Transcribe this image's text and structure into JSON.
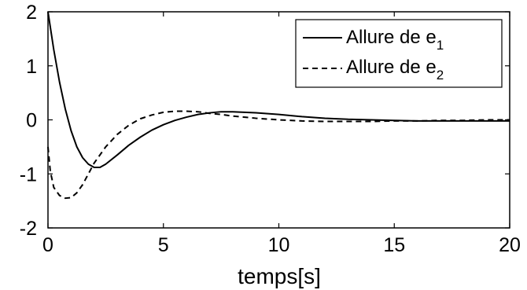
{
  "chart_data": {
    "type": "line",
    "title": "",
    "xlabel": "temps[s]",
    "ylabel": "",
    "xlim": [
      0,
      20
    ],
    "ylim": [
      -2,
      2
    ],
    "xticks": [
      0,
      5,
      10,
      15,
      20
    ],
    "yticks": [
      -2,
      -1,
      0,
      1,
      2
    ],
    "grid": false,
    "legend_position": "top-right",
    "series": [
      {
        "name": "Allure de e",
        "name_subscript": "1",
        "line_style": "solid",
        "color": "#000000",
        "x": [
          0,
          0.25,
          0.5,
          0.75,
          1,
          1.25,
          1.5,
          1.75,
          2,
          2.25,
          2.5,
          3,
          3.5,
          4,
          4.5,
          5,
          5.5,
          6,
          6.5,
          7,
          7.5,
          8,
          9,
          10,
          11,
          12,
          13,
          14,
          15,
          16,
          17,
          18,
          19,
          20
        ],
        "y": [
          2.0,
          1.3,
          0.7,
          0.2,
          -0.2,
          -0.5,
          -0.7,
          -0.82,
          -0.88,
          -0.88,
          -0.82,
          -0.65,
          -0.47,
          -0.32,
          -0.19,
          -0.09,
          -0.01,
          0.05,
          0.1,
          0.13,
          0.15,
          0.15,
          0.13,
          0.1,
          0.06,
          0.03,
          0.01,
          0.0,
          -0.01,
          -0.02,
          -0.02,
          -0.02,
          -0.02,
          -0.02
        ]
      },
      {
        "name": "Allure de e",
        "name_subscript": "2",
        "line_style": "dashed",
        "color": "#000000",
        "x": [
          0,
          0.1,
          0.25,
          0.5,
          0.75,
          1,
          1.25,
          1.5,
          1.75,
          2,
          2.5,
          3,
          3.5,
          4,
          4.5,
          5,
          5.5,
          6,
          6.5,
          7,
          7.5,
          8,
          9,
          10,
          11,
          12,
          13,
          14,
          15,
          16,
          17,
          18,
          19,
          20
        ],
        "y": [
          -0.5,
          -0.95,
          -1.25,
          -1.4,
          -1.45,
          -1.44,
          -1.35,
          -1.2,
          -1.0,
          -0.8,
          -0.5,
          -0.27,
          -0.1,
          0.02,
          0.09,
          0.14,
          0.16,
          0.16,
          0.15,
          0.12,
          0.1,
          0.07,
          0.03,
          0.0,
          -0.02,
          -0.03,
          -0.03,
          -0.03,
          -0.02,
          -0.02,
          -0.01,
          -0.01,
          0.0,
          0.0
        ]
      }
    ]
  }
}
